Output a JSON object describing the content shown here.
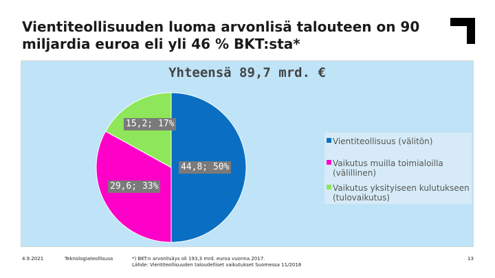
{
  "slide": {
    "title": "Vientiteollisuuden luoma arvonlisä talouteen on 90 miljardia euroa eli yli 46 % BKT:sta*"
  },
  "footer": {
    "date": "4.9.2021",
    "organization": "Teknologiateollisuus",
    "note_line1": "*) BKT:n arvonlisäys oli 193,3 mrd. euroa vuonna 2017.",
    "note_line2": "Lähde: Vientiteollisuuden taloudelliset vaikutukset Suomessa 11/2018",
    "page_number": "13"
  },
  "colors": {
    "panel_background": "#bfe3f7",
    "logo": "#000000"
  },
  "icons": {
    "logo": "corner-bracket-logo"
  },
  "chart_data": {
    "type": "pie",
    "title": "Yhteensä 89,7 mrd. €",
    "unit": "mrd. €",
    "slices": [
      {
        "name": "Vientiteollisuus (välitön)",
        "value": 44.8,
        "percent": 50,
        "label": "44,8; 50%",
        "color": "#0a6fc2"
      },
      {
        "name": "Vaikutus muilla toimialoilla (välillinen)",
        "value": 29.6,
        "percent": 33,
        "label": "29,6; 33%",
        "color": "#ff00c8"
      },
      {
        "name": "Vaikutus yksityiseen kulutukseen (tulovaikutus)",
        "value": 15.2,
        "percent": 17,
        "label": "15,2; 17%",
        "color": "#8ee65a"
      }
    ],
    "legend_position": "right",
    "start_angle": "12 o'clock",
    "direction": "clockwise"
  }
}
